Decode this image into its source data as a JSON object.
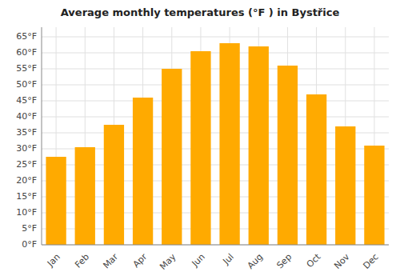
{
  "chart_data": {
    "type": "bar",
    "title": "Average monthly temperatures (°F ) in Bystřice",
    "categories": [
      "Jan",
      "Feb",
      "Mar",
      "Apr",
      "May",
      "Jun",
      "Jul",
      "Aug",
      "Sep",
      "Oct",
      "Nov",
      "Dec"
    ],
    "values": [
      27.5,
      30.5,
      37.5,
      46,
      55,
      60.5,
      63,
      62,
      56,
      47,
      37,
      31
    ],
    "color": "#FFAA00",
    "ylim": [
      0,
      68
    ],
    "yticks": [
      {
        "value": 0,
        "label": "0°F"
      },
      {
        "value": 5,
        "label": "5°F"
      },
      {
        "value": 10,
        "label": "10°F"
      },
      {
        "value": 15,
        "label": "15°F"
      },
      {
        "value": 20,
        "label": "20°F"
      },
      {
        "value": 25,
        "label": "25°F"
      },
      {
        "value": 30,
        "label": "30°F"
      },
      {
        "value": 35,
        "label": "35°F"
      },
      {
        "value": 40,
        "label": "40°F"
      },
      {
        "value": 45,
        "label": "45°F"
      },
      {
        "value": 50,
        "label": "50°F"
      },
      {
        "value": 55,
        "label": "55°F"
      },
      {
        "value": 60,
        "label": "60°F"
      },
      {
        "value": 65,
        "label": "65°F"
      }
    ],
    "grid": true
  }
}
